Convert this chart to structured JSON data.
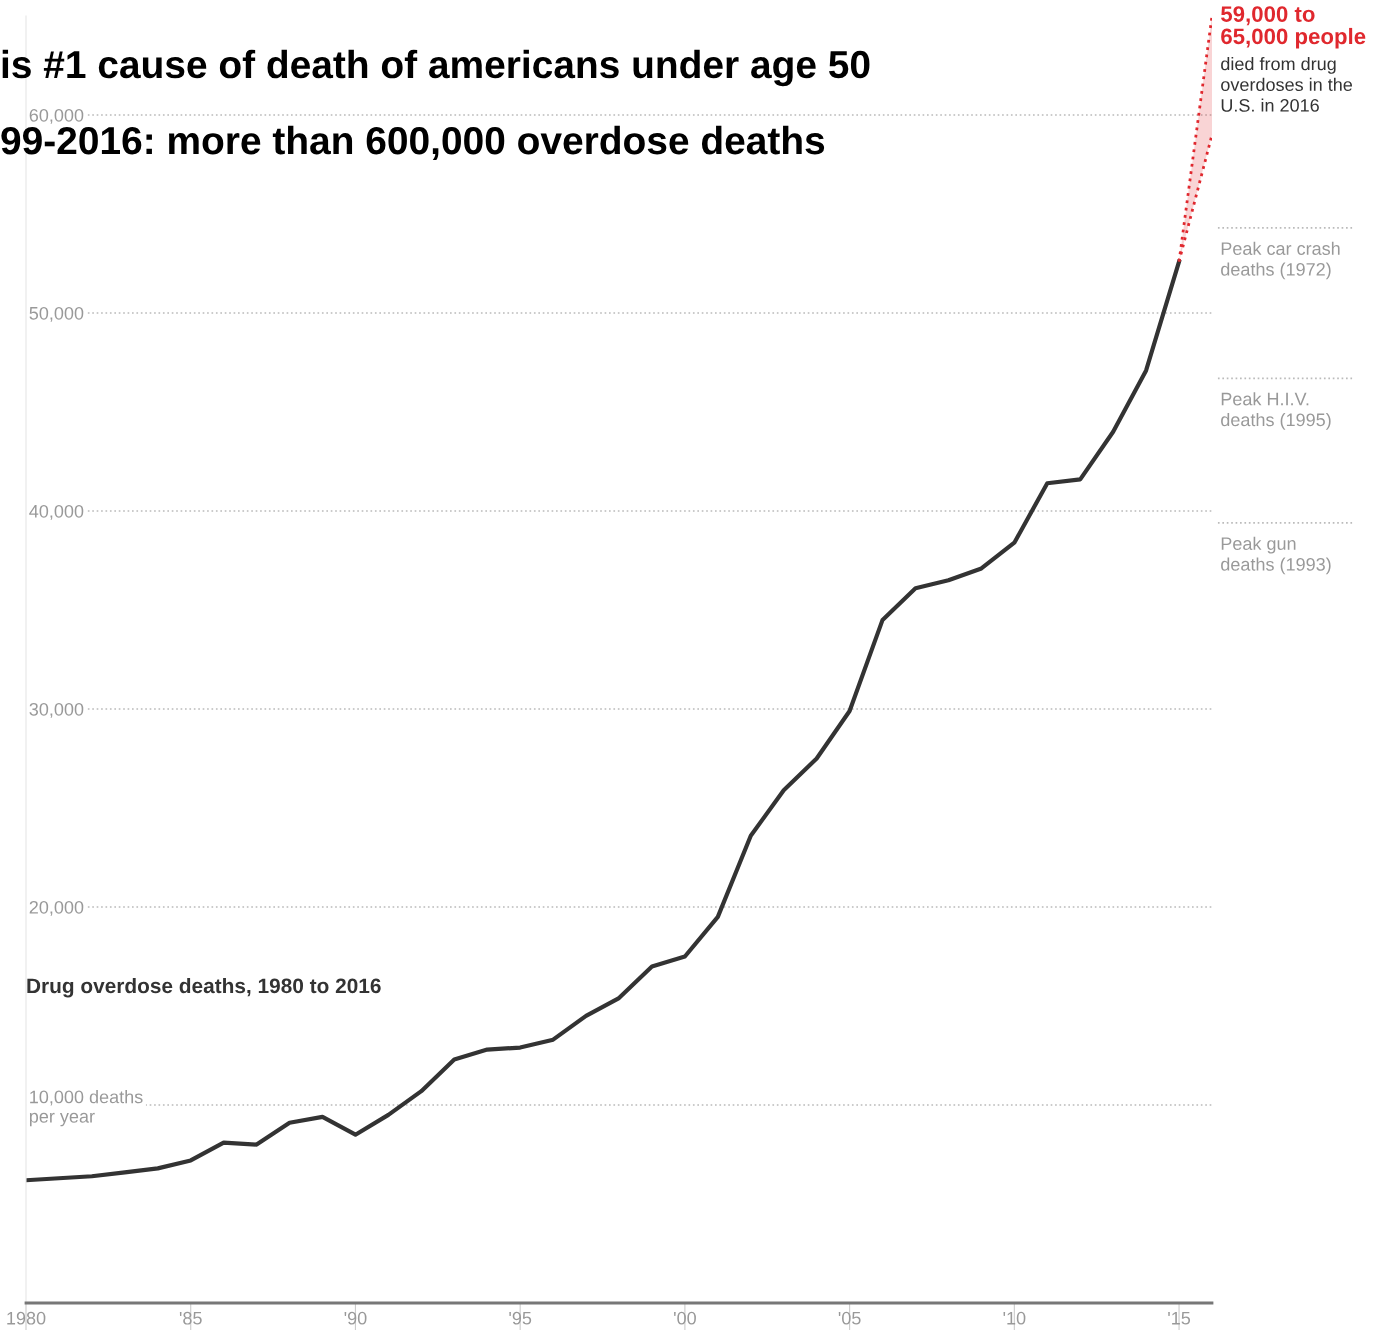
{
  "chart_data": {
    "type": "line",
    "title": "is #1 cause of death of americans under age 50",
    "subtitle": "99-2016: more than 600,000 overdose deaths",
    "annotations": [
      "Drug overdose deaths, 1980 to 2016",
      {
        "text": "59,000 to\n65,000 people",
        "x": 2016,
        "y": 65000
      },
      {
        "text": "died from drug\noverdoses in the\nU.S. in 2016",
        "x": 2016,
        "y": 59000
      }
    ],
    "series": [
      {
        "color": "#333333",
        "line_style": "solid",
        "x": [
          1980,
          1981,
          1982,
          1983,
          1984,
          1985,
          1986,
          1987,
          1988,
          1989,
          1990,
          1991,
          1992,
          1993,
          1994,
          1995,
          1996,
          1997,
          1998,
          1999,
          2000,
          2001,
          2002,
          2003,
          2004,
          2005,
          2006,
          2007,
          2008,
          2009,
          2010,
          2011,
          2012,
          2013,
          2014,
          2015
        ],
        "values": [
          6200,
          6300,
          6400,
          6600,
          6800,
          7200,
          8100,
          8000,
          9100,
          9400,
          8500,
          9500,
          10700,
          12300,
          12800,
          12900,
          13300,
          14500,
          15400,
          17000,
          17500,
          19500,
          23600,
          25900,
          27500,
          29900,
          34500,
          36100,
          36500,
          37100,
          38400,
          41400,
          41600,
          44000,
          47100,
          52600
        ]
      },
      {
        "color": "#e0282e",
        "line_style": "dotted",
        "x": [
          2015,
          2016
        ],
        "values": [
          52600,
          65000
        ],
        "lower": [
          52600,
          59000
        ],
        "upper": [
          52600,
          65000
        ]
      },
      {
        "color": "#e0282e",
        "line_style": "dotted",
        "x": [
          2015,
          2016
        ],
        "values": [
          52600,
          59000
        ]
      }
    ],
    "xlim": [
      1980,
      2016
    ],
    "xticks": [
      1980,
      {
        "value": 1985,
        "label": "'85"
      },
      {
        "value": 1990,
        "label": "'90"
      },
      {
        "value": 1995,
        "label": "'95"
      },
      {
        "value": 2000,
        "label": "'00"
      },
      {
        "value": 2005,
        "label": "'05"
      },
      {
        "value": 2010,
        "label": "'10"
      },
      {
        "value": 2015,
        "label": "'15"
      }
    ],
    "ylim": [
      0,
      65000
    ],
    "yticks": [
      {
        "value": 10000,
        "label": "10,000 deaths\nper year"
      },
      {
        "value": 20000,
        "label": "20,000"
      },
      {
        "value": 30000,
        "label": "30,000"
      },
      {
        "value": 40000,
        "label": "40,000"
      },
      {
        "value": 50000,
        "label": "50,000"
      },
      {
        "value": 60000,
        "label": "60,000"
      }
    ],
    "grid": "y",
    "ref_lines": [
      {
        "axis": "y",
        "value": 54300,
        "label": "Peak car crash\ndeaths (1972)",
        "color": "#bbbbbb",
        "line_style": "dotted"
      },
      {
        "axis": "y",
        "value": 46700,
        "label": "Peak H.I.V.\ndeaths (1995)",
        "color": "#bbbbbb",
        "line_style": "dotted"
      },
      {
        "axis": "y",
        "value": 39400,
        "label": "Peak gun\ndeaths (1993)",
        "color": "#bbbbbb",
        "line_style": "dotted"
      }
    ]
  }
}
